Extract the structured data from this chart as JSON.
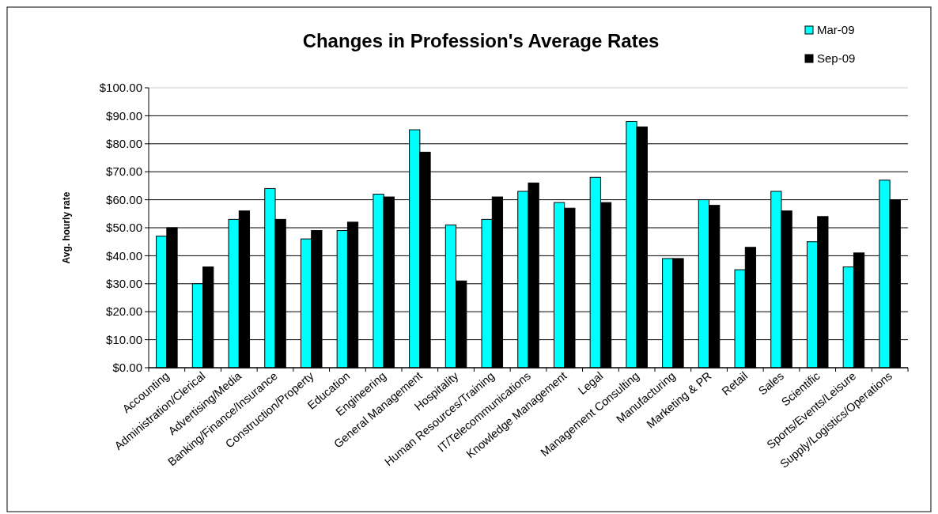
{
  "chart_data": {
    "type": "bar",
    "title": "Changes in Profession's Average Rates",
    "ylabel": "Avg. hourly rate",
    "categories": [
      "Accounting",
      "Administration/Clerical",
      "Advertising/Media",
      "Banking/Finance/Insurance",
      "Construction/Property",
      "Education",
      "Engineering",
      "General Management",
      "Hospitality",
      "Human Resources/Training",
      "IT/Telecommunications",
      "Knowledge Management",
      "Legal",
      "Management Consulting",
      "Manufacturing",
      "Marketing & PR",
      "Retail",
      "Sales",
      "Scientific",
      "Sports/Events/Leisure",
      "Supply/Logistics/Operations"
    ],
    "series": [
      {
        "name": "Mar-09",
        "color": "#00ffff",
        "values": [
          47,
          30,
          53,
          64,
          46,
          49,
          62,
          85,
          51,
          53,
          63,
          59,
          68,
          88,
          39,
          60,
          35,
          63,
          45,
          36,
          67
        ]
      },
      {
        "name": "Sep-09",
        "color": "#000000",
        "values": [
          50,
          36,
          56,
          53,
          49,
          52,
          61,
          77,
          31,
          61,
          66,
          57,
          59,
          86,
          39,
          58,
          43,
          56,
          54,
          41,
          60
        ]
      }
    ],
    "ylim": [
      0,
      100
    ],
    "yticks": [
      {
        "value": 0,
        "label": "$0.00"
      },
      {
        "value": 10,
        "label": "$10.00"
      },
      {
        "value": 20,
        "label": "$20.00"
      },
      {
        "value": 30,
        "label": "$30.00"
      },
      {
        "value": 40,
        "label": "$40.00"
      },
      {
        "value": 50,
        "label": "$50.00"
      },
      {
        "value": 60,
        "label": "$60.00"
      },
      {
        "value": 70,
        "label": "$70.00"
      },
      {
        "value": 80,
        "label": "$80.00"
      },
      {
        "value": 90,
        "label": "$90.00"
      },
      {
        "value": 100,
        "label": "$100.00"
      }
    ],
    "grid": "y",
    "legend": "top right"
  }
}
